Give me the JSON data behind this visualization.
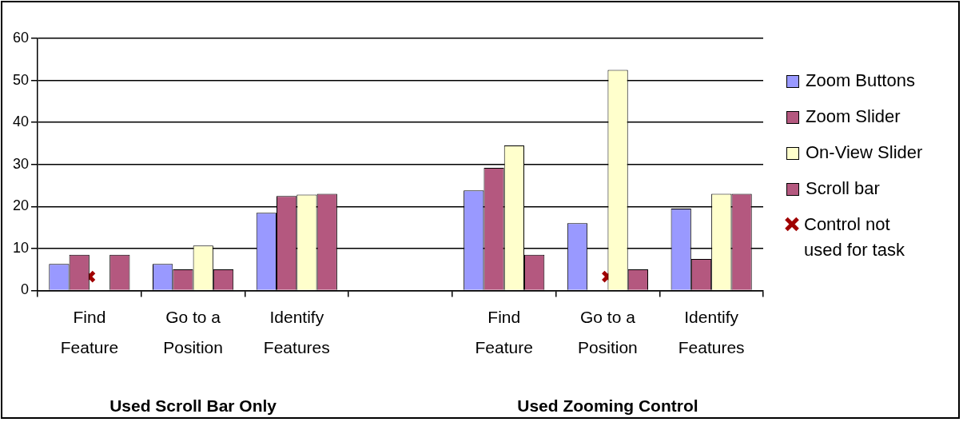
{
  "chart_data": {
    "type": "bar",
    "categories": [
      "Find Feature",
      "Go to a Position",
      "Identify Features",
      null,
      "Find Feature",
      "Go to a Position",
      "Identify Features"
    ],
    "series": [
      {
        "name": "Zoom Buttons",
        "color": "#9999ff",
        "values": [
          6.3,
          6.3,
          18.5,
          null,
          23.8,
          16,
          19.5
        ]
      },
      {
        "name": "Zoom Slider",
        "color": "#b4587f",
        "values": [
          8.5,
          5,
          22.5,
          null,
          29.2,
          null,
          7.5
        ]
      },
      {
        "name": "On-View Slider",
        "color": "#ffffcc",
        "values": [
          null,
          10.7,
          22.8,
          null,
          34.5,
          52.5,
          23
        ]
      },
      {
        "name": "Scroll bar",
        "color": "#b4587f",
        "values": [
          8.5,
          5,
          23,
          null,
          8.5,
          5,
          23
        ]
      },
      {
        "name": "Control not used for task",
        "type": "scatter",
        "color": "#a00000",
        "marker": "cross",
        "values": [
          3.3,
          null,
          null,
          null,
          null,
          3.3,
          null
        ]
      }
    ],
    "ylim": [
      0,
      60
    ],
    "yticks": [
      0,
      10,
      20,
      30,
      40,
      50,
      60
    ],
    "grid": "y",
    "legend": "right",
    "annotations": [
      "Used Scroll Bar Only",
      "Used Zooming Control"
    ]
  }
}
